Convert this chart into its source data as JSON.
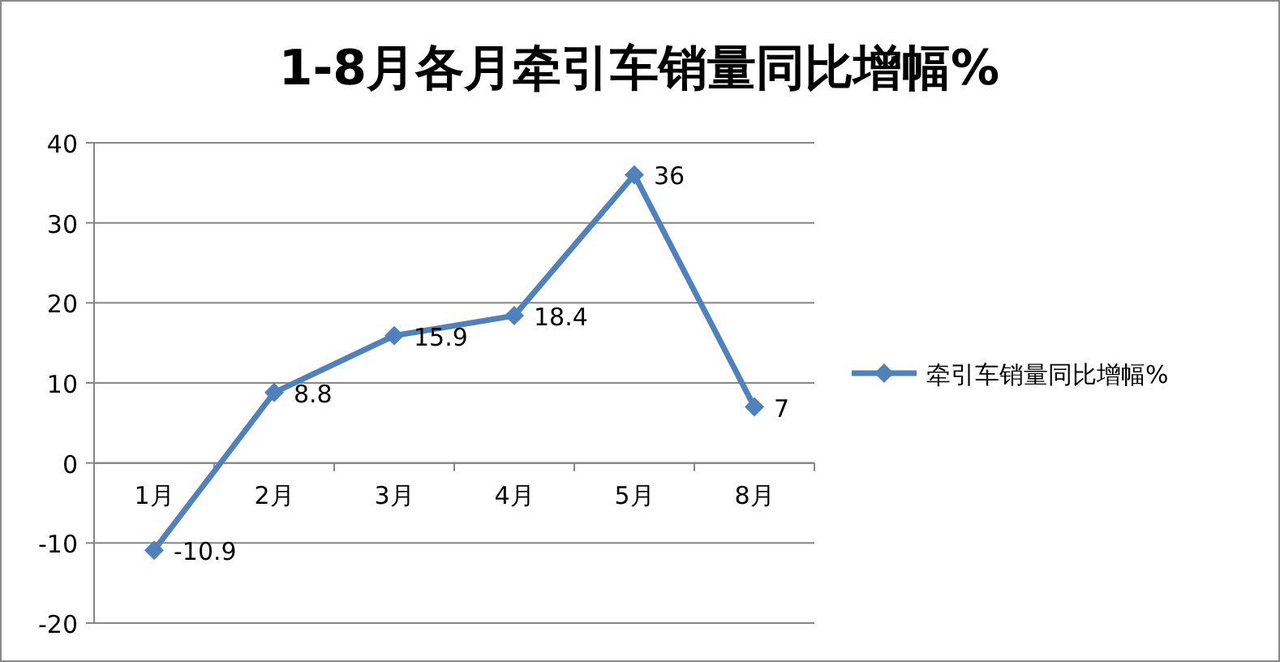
{
  "chart_data": {
    "type": "line",
    "title": "1-8月各月牵引车销量同比增幅%",
    "categories": [
      "1月",
      "2月",
      "3月",
      "4月",
      "5月",
      "8月"
    ],
    "series": [
      {
        "name": "牵引车销量同比增幅%",
        "color": "#4f81bd",
        "values": [
          -10.9,
          8.8,
          15.9,
          18.4,
          36,
          7
        ]
      }
    ],
    "ylim": [
      -20,
      40
    ],
    "yticks": [
      -20,
      -10,
      0,
      10,
      20,
      30,
      40
    ],
    "grid": "y",
    "legend": "right",
    "marker": "diamond",
    "data_labels": true
  }
}
